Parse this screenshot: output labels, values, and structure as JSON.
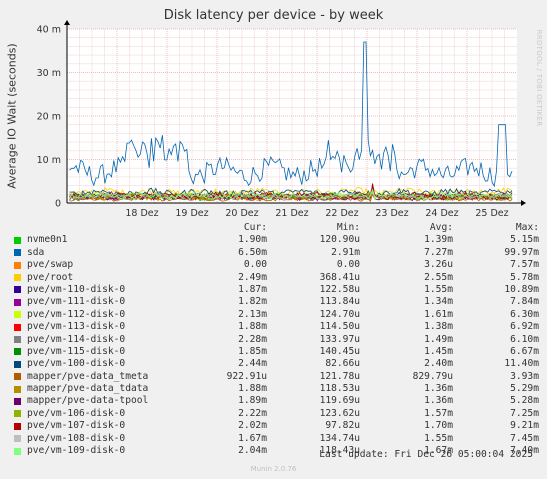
{
  "chart_data": {
    "type": "line",
    "title": "Disk latency per device - by week",
    "ylabel": "Average IO Wait (seconds)",
    "watermark": "RRDTOOL / TOBI OETIKER",
    "ylim": [
      0,
      40
    ],
    "y_ticks": [
      {
        "value": 0,
        "label": "0"
      },
      {
        "value": 10,
        "label": "10 m"
      },
      {
        "value": 20,
        "label": "20 m"
      },
      {
        "value": 30,
        "label": "30 m"
      },
      {
        "value": 40,
        "label": "40 m"
      }
    ],
    "y_unit_note": "values in milliseconds (m)",
    "x_range_days": [
      "2025-12-17",
      "2025-12-26"
    ],
    "x_ticks": [
      {
        "day": 1,
        "label": "18 Dez"
      },
      {
        "day": 2,
        "label": "19 Dez"
      },
      {
        "day": 3,
        "label": "20 Dez"
      },
      {
        "day": 4,
        "label": "21 Dez"
      },
      {
        "day": 5,
        "label": "22 Dez"
      },
      {
        "day": 6,
        "label": "23 Dez"
      },
      {
        "day": 7,
        "label": "24 Dez"
      },
      {
        "day": 8,
        "label": "25 Dez"
      }
    ],
    "series": [
      {
        "name": "nvme0n1",
        "color": "#00cc00",
        "cur": "1.90m",
        "min": "120.90u",
        "avg": "1.39m",
        "max": "5.15m",
        "base": 1.39,
        "amp": 0.8,
        "spike_day": 6.1,
        "spike": 3.5
      },
      {
        "name": "sda",
        "color": "#0066b3",
        "cur": "6.50m",
        "min": "2.91m",
        "avg": "7.27m",
        "max": "99.97m",
        "base": 7.27,
        "amp": 3.0,
        "spike_day": 5.95,
        "spike": 37.0
      },
      {
        "name": "pve/swap",
        "color": "#ff8000",
        "cur": "0.00",
        "min": "0.00",
        "avg": "3.26u",
        "max": "7.57m",
        "base": 0.0,
        "amp": 0.0,
        "spike_day": 5.95,
        "spike": 1.0
      },
      {
        "name": "pve/root",
        "color": "#ffcc00",
        "cur": "2.49m",
        "min": "368.41u",
        "avg": "2.55m",
        "max": "5.78m",
        "base": 2.55,
        "amp": 0.9,
        "spike_day": 6.1,
        "spike": 3.2
      },
      {
        "name": "pve/vm-110-disk-0",
        "color": "#330099",
        "cur": "1.87m",
        "min": "122.58u",
        "avg": "1.55m",
        "max": "10.89m",
        "base": 1.55,
        "amp": 0.8,
        "spike_day": 6.1,
        "spike": 4.0
      },
      {
        "name": "pve/vm-111-disk-0",
        "color": "#990099",
        "cur": "1.82m",
        "min": "113.84u",
        "avg": "1.34m",
        "max": "7.84m",
        "base": 1.34,
        "amp": 0.7,
        "spike_day": 6.1,
        "spike": 3.5
      },
      {
        "name": "pve/vm-112-disk-0",
        "color": "#ccff00",
        "cur": "2.13m",
        "min": "124.70u",
        "avg": "1.61m",
        "max": "6.30m",
        "base": 1.61,
        "amp": 0.8,
        "spike_day": 6.1,
        "spike": 3.0
      },
      {
        "name": "pve/vm-113-disk-0",
        "color": "#ff0000",
        "cur": "1.88m",
        "min": "114.50u",
        "avg": "1.38m",
        "max": "6.92m",
        "base": 1.38,
        "amp": 0.7,
        "spike_day": 6.1,
        "spike": 3.0
      },
      {
        "name": "pve/vm-114-disk-0",
        "color": "#808080",
        "cur": "2.28m",
        "min": "133.97u",
        "avg": "1.49m",
        "max": "6.10m",
        "base": 1.49,
        "amp": 0.7,
        "spike_day": 6.1,
        "spike": 3.0
      },
      {
        "name": "pve/vm-115-disk-0",
        "color": "#008f00",
        "cur": "1.85m",
        "min": "140.45u",
        "avg": "1.45m",
        "max": "6.67m",
        "base": 1.45,
        "amp": 0.7,
        "spike_day": 6.1,
        "spike": 3.0
      },
      {
        "name": "pve/vm-100-disk-0",
        "color": "#00487d",
        "cur": "2.44m",
        "min": "82.66u",
        "avg": "2.40m",
        "max": "11.40m",
        "base": 2.4,
        "amp": 0.9,
        "spike_day": 6.1,
        "spike": 4.0
      },
      {
        "name": "mapper/pve-data_tmeta",
        "color": "#b35a00",
        "cur": "922.91u",
        "min": "121.78u",
        "avg": "829.79u",
        "max": "3.93m",
        "base": 0.83,
        "amp": 0.4,
        "spike_day": 6.1,
        "spike": 2.0
      },
      {
        "name": "mapper/pve-data_tdata",
        "color": "#b38f00",
        "cur": "1.88m",
        "min": "118.53u",
        "avg": "1.36m",
        "max": "5.29m",
        "base": 1.36,
        "amp": 0.7,
        "spike_day": 6.1,
        "spike": 3.0
      },
      {
        "name": "mapper/pve-data-tpool",
        "color": "#6b006b",
        "cur": "1.89m",
        "min": "119.69u",
        "avg": "1.36m",
        "max": "5.28m",
        "base": 1.36,
        "amp": 0.7,
        "spike_day": 6.1,
        "spike": 3.0
      },
      {
        "name": "pve/vm-106-disk-0",
        "color": "#8fb300",
        "cur": "2.22m",
        "min": "123.62u",
        "avg": "1.57m",
        "max": "7.25m",
        "base": 1.57,
        "amp": 0.8,
        "spike_day": 6.1,
        "spike": 3.0
      },
      {
        "name": "pve/vm-107-disk-0",
        "color": "#b30000",
        "cur": "2.02m",
        "min": "97.82u",
        "avg": "1.70m",
        "max": "9.21m",
        "base": 1.7,
        "amp": 0.8,
        "spike_day": 6.1,
        "spike": 4.5
      },
      {
        "name": "pve/vm-108-disk-0",
        "color": "#bebebe",
        "cur": "1.67m",
        "min": "134.74u",
        "avg": "1.55m",
        "max": "7.45m",
        "base": 1.55,
        "amp": 0.7,
        "spike_day": 6.1,
        "spike": 3.0
      },
      {
        "name": "pve/vm-109-disk-0",
        "color": "#80ff80",
        "cur": "2.04m",
        "min": "118.43u",
        "avg": "1.67m",
        "max": "7.40m",
        "base": 1.67,
        "amp": 0.8,
        "spike_day": 6.1,
        "spike": 3.0
      }
    ]
  },
  "legend": {
    "headers": {
      "cur": "Cur:",
      "min": "Min:",
      "avg": "Avg:",
      "max": "Max:"
    }
  },
  "footer": {
    "last_update": "Last update: Fri Dec 26 05:00:04 2025",
    "version": "Munin 2.0.76"
  }
}
